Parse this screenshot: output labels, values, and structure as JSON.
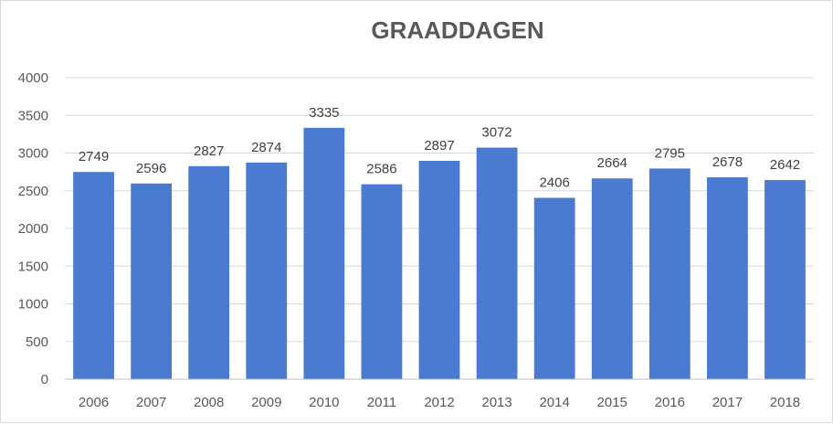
{
  "chart_data": {
    "type": "bar",
    "title": "GRAADDAGEN",
    "xlabel": "",
    "ylabel": "",
    "categories": [
      "2006",
      "2007",
      "2008",
      "2009",
      "2010",
      "2011",
      "2012",
      "2013",
      "2014",
      "2015",
      "2016",
      "2017",
      "2018"
    ],
    "values": [
      2749,
      2596,
      2827,
      2874,
      3335,
      2586,
      2897,
      3072,
      2406,
      2664,
      2795,
      2678,
      2642
    ],
    "ylim": [
      0,
      4000
    ],
    "yticks": [
      0,
      500,
      1000,
      1500,
      2000,
      2500,
      3000,
      3500,
      4000
    ],
    "grid": true,
    "legend": "none",
    "bar_color": "#4a7bd0",
    "data_labels": true
  }
}
